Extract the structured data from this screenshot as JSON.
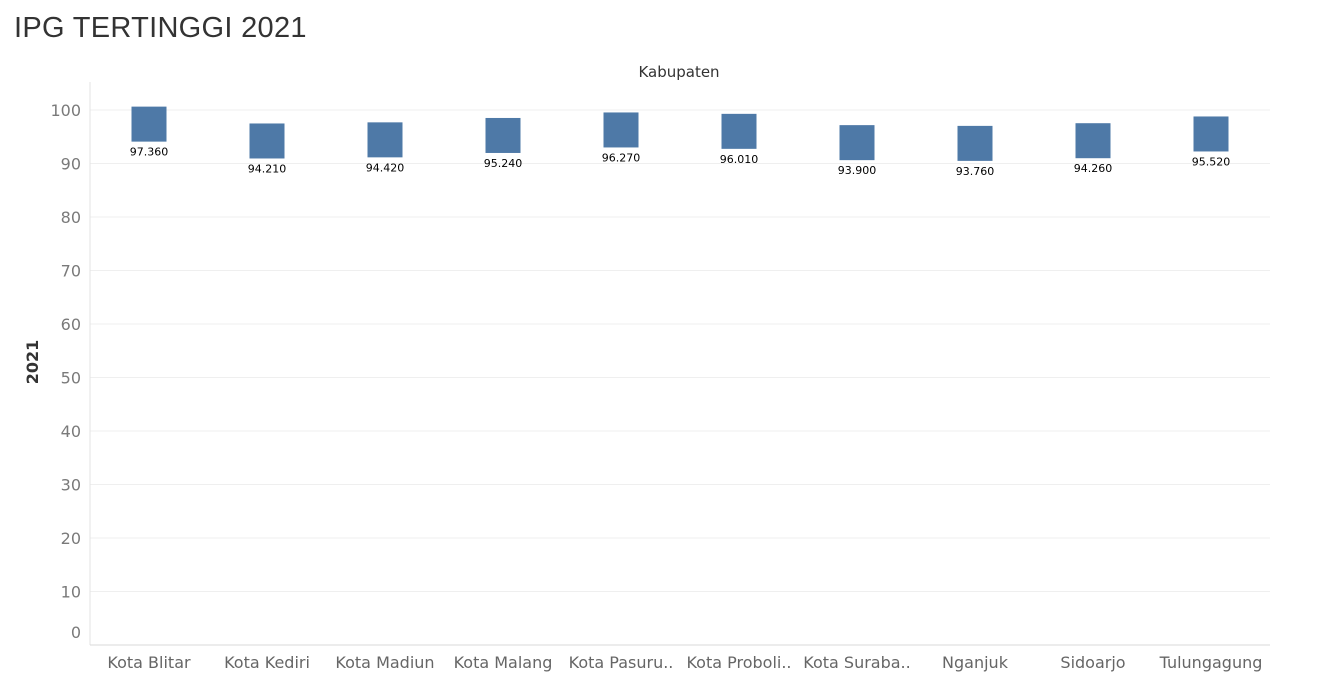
{
  "page": {
    "title": "IPG TERTINGGI 2021"
  },
  "chart_data": {
    "type": "bar",
    "title": "IPG TERTINGGI 2021",
    "xlabel": "Kabupaten",
    "ylabel": "2021",
    "ylim": [
      0,
      100
    ],
    "yticks": [
      0,
      10,
      20,
      30,
      40,
      50,
      60,
      70,
      80,
      90,
      100
    ],
    "grid": true,
    "bar_color": "#4e79a7",
    "categories": [
      "Kota Blitar",
      "Kota Kediri",
      "Kota Madiun",
      "Kota Malang",
      "Kota Pasuru..",
      "Kota Proboli..",
      "Kota Suraba..",
      "Nganjuk",
      "Sidoarjo",
      "Tulungagung"
    ],
    "values": [
      97.36,
      94.21,
      94.42,
      95.24,
      96.27,
      96.01,
      93.9,
      93.76,
      94.26,
      95.52
    ],
    "data_labels": [
      "97.360",
      "94.210",
      "94.420",
      "95.240",
      "96.270",
      "96.010",
      "93.900",
      "93.760",
      "94.260",
      "95.520"
    ]
  }
}
